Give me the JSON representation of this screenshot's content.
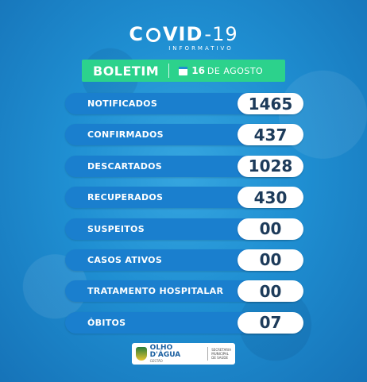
{
  "header": {
    "title_prefix": "C",
    "title_main": "VID",
    "title_suffix": "-19",
    "subtitle": "INFORMATIVO"
  },
  "boletim": {
    "label": "BOLETIM",
    "date_day": "16",
    "date_rest": "DE AGOSTO",
    "icon": "calendar-icon"
  },
  "stats": [
    {
      "label": "NOTIFICADOS",
      "value": "1465"
    },
    {
      "label": "CONFIRMADOS",
      "value": "437"
    },
    {
      "label": "DESCARTADOS",
      "value": "1028"
    },
    {
      "label": "RECUPERADOS",
      "value": "430"
    },
    {
      "label": "SUSPEITOS",
      "value": "00"
    },
    {
      "label": "CASOS ATIVOS",
      "value": "00"
    },
    {
      "label": "TRATAMENTO HOSPITALAR",
      "value": "00"
    },
    {
      "label": "ÓBITOS",
      "value": "07"
    }
  ],
  "footer": {
    "city": "OLHO D'ÁGUA",
    "city_sub": "GESTÃO",
    "secretaria_line1": "SECRETARIA",
    "secretaria_line2": "MUNICIPAL",
    "secretaria_line3": "DE SAÚDE"
  },
  "colors": {
    "background": "#1f8fd2",
    "boletim_bar": "#2cd28c",
    "label_pill": "#1a7fce",
    "value_text": "#1d3b5a"
  }
}
